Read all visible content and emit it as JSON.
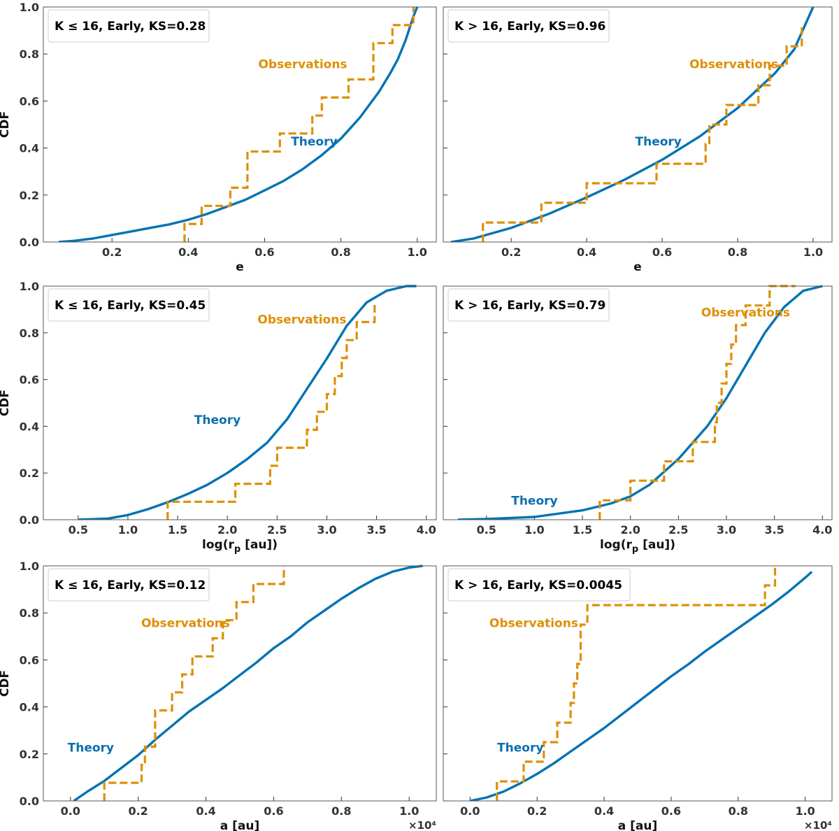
{
  "chart_data": [
    {
      "type": "line",
      "legend": "K ≤ 16, Early, KS=0.28",
      "xlabel": "e",
      "ylabel": "CDF",
      "xlim": [
        0.02,
        1.05
      ],
      "ylim": [
        0,
        1
      ],
      "xticks": [
        "0.2",
        "0.4",
        "0.6",
        "0.8",
        "1.0"
      ],
      "xtick_values": [
        0.2,
        0.4,
        0.6,
        0.8,
        1.0
      ],
      "yticks": [
        "0.0",
        "0.2",
        "0.4",
        "0.6",
        "0.8",
        "1.0"
      ],
      "offset_label": "",
      "series": [
        {
          "name": "Theory",
          "label": "Theory",
          "label_at": [
            0.73,
            0.41
          ],
          "x": [
            0.06,
            0.1,
            0.15,
            0.2,
            0.25,
            0.3,
            0.35,
            0.4,
            0.45,
            0.5,
            0.55,
            0.6,
            0.65,
            0.7,
            0.75,
            0.8,
            0.85,
            0.9,
            0.93,
            0.95,
            0.97,
            0.99,
            1.0
          ],
          "y": [
            0.0,
            0.005,
            0.015,
            0.03,
            0.045,
            0.06,
            0.075,
            0.095,
            0.12,
            0.15,
            0.18,
            0.22,
            0.26,
            0.31,
            0.37,
            0.44,
            0.53,
            0.64,
            0.72,
            0.78,
            0.86,
            0.96,
            1.0
          ]
        },
        {
          "name": "Observations",
          "label": "Observations",
          "label_at": [
            0.7,
            0.74
          ],
          "x": [
            0.39,
            0.435,
            0.51,
            0.555,
            0.64,
            0.725,
            0.75,
            0.82,
            0.885,
            0.935,
            0.99
          ],
          "y": [
            0.077,
            0.154,
            0.231,
            0.385,
            0.462,
            0.538,
            0.615,
            0.692,
            0.846,
            0.923,
            1.0
          ]
        }
      ]
    },
    {
      "type": "line",
      "legend": "K > 16, Early, KS=0.96",
      "xlabel": "e",
      "ylabel": "",
      "xlim": [
        0.02,
        1.05
      ],
      "ylim": [
        0,
        1
      ],
      "xticks": [
        "0.2",
        "0.4",
        "0.6",
        "0.8",
        "1.0"
      ],
      "xtick_values": [
        0.2,
        0.4,
        0.6,
        0.8,
        1.0
      ],
      "yticks": [
        "0.0",
        "0.2",
        "0.4",
        "0.6",
        "0.8",
        "1.0"
      ],
      "offset_label": "",
      "series": [
        {
          "name": "Theory",
          "label": "Theory",
          "label_at": [
            0.59,
            0.41
          ],
          "x": [
            0.04,
            0.1,
            0.2,
            0.3,
            0.4,
            0.5,
            0.6,
            0.7,
            0.8,
            0.9,
            0.95,
            1.0
          ],
          "y": [
            0.0,
            0.015,
            0.06,
            0.12,
            0.19,
            0.265,
            0.35,
            0.45,
            0.57,
            0.72,
            0.82,
            1.0
          ]
        },
        {
          "name": "Observations",
          "label": "Observations",
          "label_at": [
            0.79,
            0.74
          ],
          "x": [
            0.125,
            0.28,
            0.4,
            0.585,
            0.715,
            0.725,
            0.77,
            0.855,
            0.885,
            0.93,
            0.97
          ],
          "y": [
            0.083,
            0.167,
            0.25,
            0.333,
            0.417,
            0.5,
            0.583,
            0.667,
            0.75,
            0.833,
            0.917
          ]
        }
      ]
    },
    {
      "type": "line",
      "legend": "K ≤ 16, Early, KS=0.45",
      "xlabel": "log(r_p [au])",
      "ylabel": "CDF",
      "xlim": [
        0.15,
        4.1
      ],
      "ylim": [
        0,
        1
      ],
      "xticks": [
        "0.5",
        "1.0",
        "1.5",
        "2.0",
        "2.5",
        "3.0",
        "3.5",
        "4.0"
      ],
      "xtick_values": [
        0.5,
        1.0,
        1.5,
        2.0,
        2.5,
        3.0,
        3.5,
        4.0
      ],
      "yticks": [
        "0.0",
        "0.2",
        "0.4",
        "0.6",
        "0.8",
        "1.0"
      ],
      "offset_label": "",
      "series": [
        {
          "name": "Theory",
          "label": "Theory",
          "label_at": [
            1.9,
            0.41
          ],
          "x": [
            0.5,
            0.8,
            1.0,
            1.2,
            1.4,
            1.6,
            1.8,
            2.0,
            2.2,
            2.4,
            2.6,
            2.8,
            3.0,
            3.2,
            3.4,
            3.6,
            3.8,
            3.9
          ],
          "y": [
            0.0,
            0.005,
            0.02,
            0.045,
            0.075,
            0.11,
            0.15,
            0.2,
            0.26,
            0.33,
            0.43,
            0.56,
            0.69,
            0.83,
            0.93,
            0.98,
            1.0,
            1.0
          ]
        },
        {
          "name": "Observations",
          "label": "Observations",
          "label_at": [
            2.75,
            0.84
          ],
          "x": [
            1.4,
            2.08,
            2.43,
            2.5,
            2.8,
            2.9,
            3.0,
            3.08,
            3.15,
            3.2,
            3.3,
            3.48
          ],
          "y": [
            0.077,
            0.154,
            0.231,
            0.308,
            0.385,
            0.462,
            0.538,
            0.615,
            0.692,
            0.769,
            0.846,
            0.923
          ]
        }
      ]
    },
    {
      "type": "line",
      "legend": "K > 16, Early, KS=0.79",
      "xlabel": "log(r_p [au])",
      "ylabel": "",
      "xlim": [
        0.05,
        4.1
      ],
      "ylim": [
        0,
        1
      ],
      "xticks": [
        "0.5",
        "1.0",
        "1.5",
        "2.0",
        "2.5",
        "3.0",
        "3.5",
        "4.0"
      ],
      "xtick_values": [
        0.5,
        1.0,
        1.5,
        2.0,
        2.5,
        3.0,
        3.5,
        4.0
      ],
      "yticks": [
        "0.0",
        "0.2",
        "0.4",
        "0.6",
        "0.8",
        "1.0"
      ],
      "offset_label": "",
      "series": [
        {
          "name": "Theory",
          "label": "Theory",
          "label_at": [
            1.0,
            0.065
          ],
          "x": [
            0.2,
            0.5,
            1.0,
            1.5,
            1.8,
            2.0,
            2.2,
            2.5,
            2.8,
            3.0,
            3.2,
            3.4,
            3.6,
            3.8,
            4.0
          ],
          "y": [
            0.0,
            0.003,
            0.012,
            0.04,
            0.07,
            0.1,
            0.15,
            0.26,
            0.4,
            0.52,
            0.66,
            0.8,
            0.91,
            0.98,
            1.0
          ]
        },
        {
          "name": "Observations",
          "label": "Observations",
          "label_at": [
            3.2,
            0.87
          ],
          "x": [
            1.68,
            2.0,
            2.35,
            2.65,
            2.88,
            2.9,
            2.95,
            3.0,
            3.05,
            3.1,
            3.2,
            3.45,
            3.72
          ],
          "y": [
            0.083,
            0.167,
            0.25,
            0.333,
            0.417,
            0.5,
            0.583,
            0.667,
            0.75,
            0.833,
            0.917,
            1.0,
            1.0
          ]
        }
      ]
    },
    {
      "type": "line",
      "legend": "K ≤ 16, Early, KS=0.12",
      "xlabel": "a [au]",
      "ylabel": "CDF",
      "xlim": [
        -0.08,
        1.08
      ],
      "ylim": [
        0,
        1
      ],
      "xticks": [
        "0.0",
        "0.2",
        "0.4",
        "0.6",
        "0.8",
        "1.0"
      ],
      "xtick_values": [
        0.0,
        0.2,
        0.4,
        0.6,
        0.8,
        1.0
      ],
      "yticks": [
        "0.0",
        "0.2",
        "0.4",
        "0.6",
        "0.8",
        "1.0"
      ],
      "offset_label": "×10⁴",
      "series": [
        {
          "name": "Theory",
          "label": "Theory",
          "label_at": [
            0.06,
            0.21
          ],
          "x": [
            0.01,
            0.05,
            0.1,
            0.15,
            0.2,
            0.25,
            0.3,
            0.35,
            0.4,
            0.45,
            0.5,
            0.55,
            0.6,
            0.65,
            0.7,
            0.75,
            0.8,
            0.85,
            0.9,
            0.95,
            1.0,
            1.04
          ],
          "y": [
            0.0,
            0.04,
            0.085,
            0.14,
            0.195,
            0.26,
            0.32,
            0.38,
            0.43,
            0.48,
            0.535,
            0.59,
            0.65,
            0.7,
            0.76,
            0.81,
            0.86,
            0.905,
            0.945,
            0.975,
            0.993,
            1.0
          ]
        },
        {
          "name": "Observations",
          "label": "Observations",
          "label_at": [
            0.34,
            0.74
          ],
          "x": [
            0.1,
            0.21,
            0.22,
            0.25,
            0.27,
            0.3,
            0.33,
            0.36,
            0.42,
            0.45,
            0.49,
            0.54,
            0.63
          ],
          "y": [
            0.077,
            0.154,
            0.231,
            0.385,
            0.385,
            0.462,
            0.538,
            0.615,
            0.692,
            0.769,
            0.846,
            0.923,
            1.0
          ]
        }
      ]
    },
    {
      "type": "line",
      "legend": "K > 16, Early, KS=0.0045",
      "xlabel": "a [au]",
      "ylabel": "",
      "xlim": [
        -0.08,
        1.08
      ],
      "ylim": [
        0,
        1
      ],
      "xticks": [
        "0.0",
        "0.2",
        "0.4",
        "0.6",
        "0.8",
        "1.0"
      ],
      "xtick_values": [
        0.0,
        0.2,
        0.4,
        0.6,
        0.8,
        1.0
      ],
      "yticks": [
        "0.0",
        "0.2",
        "0.4",
        "0.6",
        "0.8",
        "1.0"
      ],
      "offset_label": "×10⁴",
      "series": [
        {
          "name": "Theory",
          "label": "Theory",
          "label_at": [
            0.15,
            0.21
          ],
          "x": [
            0.0,
            0.05,
            0.1,
            0.15,
            0.2,
            0.25,
            0.3,
            0.35,
            0.4,
            0.45,
            0.5,
            0.55,
            0.6,
            0.65,
            0.7,
            0.75,
            0.8,
            0.85,
            0.9,
            0.95,
            1.0,
            1.02
          ],
          "y": [
            0.0,
            0.015,
            0.04,
            0.075,
            0.115,
            0.16,
            0.21,
            0.26,
            0.31,
            0.365,
            0.42,
            0.475,
            0.53,
            0.58,
            0.635,
            0.685,
            0.735,
            0.785,
            0.835,
            0.89,
            0.95,
            0.975
          ]
        },
        {
          "name": "Observations",
          "label": "Observations",
          "label_at": [
            0.19,
            0.74
          ],
          "x": [
            0.08,
            0.16,
            0.22,
            0.26,
            0.3,
            0.31,
            0.32,
            0.33,
            0.35,
            0.88,
            0.91
          ],
          "y": [
            0.083,
            0.167,
            0.25,
            0.333,
            0.417,
            0.5,
            0.583,
            0.75,
            0.833,
            0.917,
            1.0
          ]
        }
      ]
    }
  ]
}
